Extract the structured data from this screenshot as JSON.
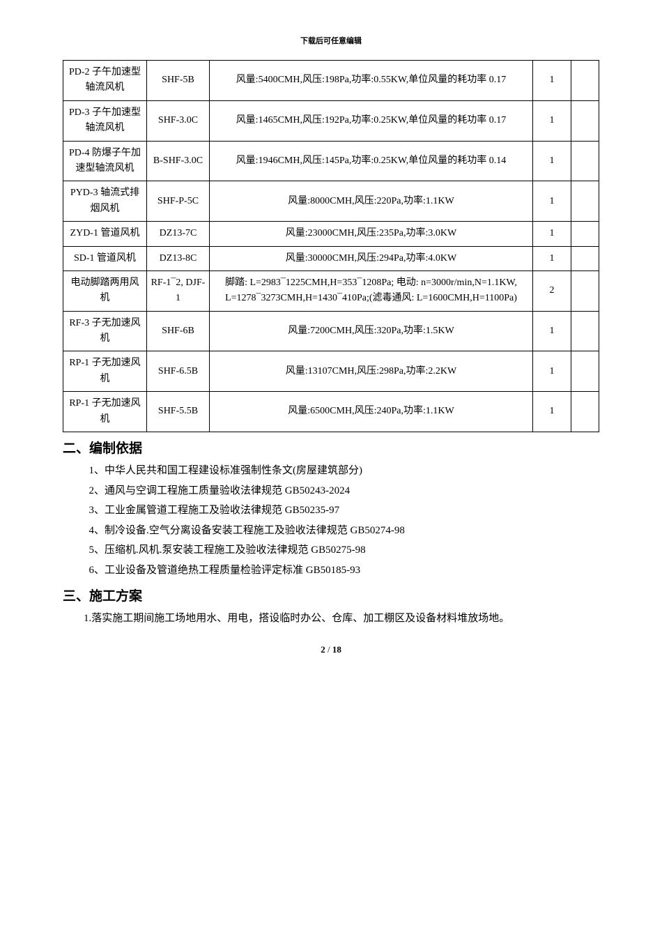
{
  "header_note": "下载后可任意编辑",
  "table": {
    "border_color": "#000000",
    "font_size": 14,
    "rows": [
      {
        "c1": "PD-2 子午加速型轴流风机",
        "c2": "SHF-5B",
        "c3": "风量:5400CMH,风压:198Pa,功率:0.55KW,单位风量的耗功率 0.17",
        "c4": "1",
        "c5": ""
      },
      {
        "c1": "PD-3 子午加速型轴流风机",
        "c2": "SHF-3.0C",
        "c3": "风量:1465CMH,风压:192Pa,功率:0.25KW,单位风量的耗功率 0.17",
        "c4": "1",
        "c5": ""
      },
      {
        "c1": "PD-4 防爆子午加速型轴流风机",
        "c2": "B-SHF-3.0C",
        "c3": "风量:1946CMH,风压:145Pa,功率:0.25KW,单位风量的耗功率 0.14",
        "c4": "1",
        "c5": ""
      },
      {
        "c1": "PYD-3 轴流式排烟风机",
        "c2": "SHF-P-5C",
        "c3": "风量:8000CMH,风压:220Pa,功率:1.1KW",
        "c4": "1",
        "c5": ""
      },
      {
        "c1": "ZYD-1 管道风机",
        "c2": "DZ13-7C",
        "c3": "风量:23000CMH,风压:235Pa,功率:3.0KW",
        "c4": "1",
        "c5": ""
      },
      {
        "c1": "SD-1 管道风机",
        "c2": "DZ13-8C",
        "c3": "风量:30000CMH,风压:294Pa,功率:4.0KW",
        "c4": "1",
        "c5": ""
      },
      {
        "c1": "电动脚踏两用风机",
        "c2": "RF-1¯2, DJF-1",
        "c3": "脚踏: L=2983¯1225CMH,H=353¯1208Pa; 电动: n=3000r/min,N=1.1KW, L=1278¯3273CMH,H=1430¯410Pa;(滤毒通风: L=1600CMH,H=1100Pa)",
        "c4": "2",
        "c5": ""
      },
      {
        "c1": "RF-3 子无加速风机",
        "c2": "SHF-6B",
        "c3": "风量:7200CMH,风压:320Pa,功率:1.5KW",
        "c4": "1",
        "c5": ""
      },
      {
        "c1": "RP-1 子无加速风机",
        "c2": "SHF-6.5B",
        "c3": "风量:13107CMH,风压:298Pa,功率:2.2KW",
        "c4": "1",
        "c5": ""
      },
      {
        "c1": "RP-1 子无加速风机",
        "c2": "SHF-5.5B",
        "c3": "风量:6500CMH,风压:240Pa,功率:1.1KW",
        "c4": "1",
        "c5": ""
      }
    ]
  },
  "section2": {
    "title": "二、编制依据",
    "items": [
      "1、中华人民共和国工程建设标准强制性条文(房屋建筑部分)",
      "2、通风与空调工程施工质量验收法律规范 GB50243-2024",
      "3、工业金属管道工程施工及验收法律规范 GB50235-97",
      "4、制冷设备.空气分离设备安装工程施工及验收法律规范 GB50274-98",
      "5、压缩机.风机.泵安装工程施工及验收法律规范 GB50275-98",
      "6、工业设备及管道绝热工程质量检验评定标准 GB50185-93"
    ]
  },
  "section3": {
    "title": "三、施工方案",
    "para1": "1.落实施工期间施工场地用水、用电，搭设临时办公、仓库、加工棚区及设备材料堆放场地。"
  },
  "page": {
    "current": "2",
    "sep": " / ",
    "total": "18"
  }
}
